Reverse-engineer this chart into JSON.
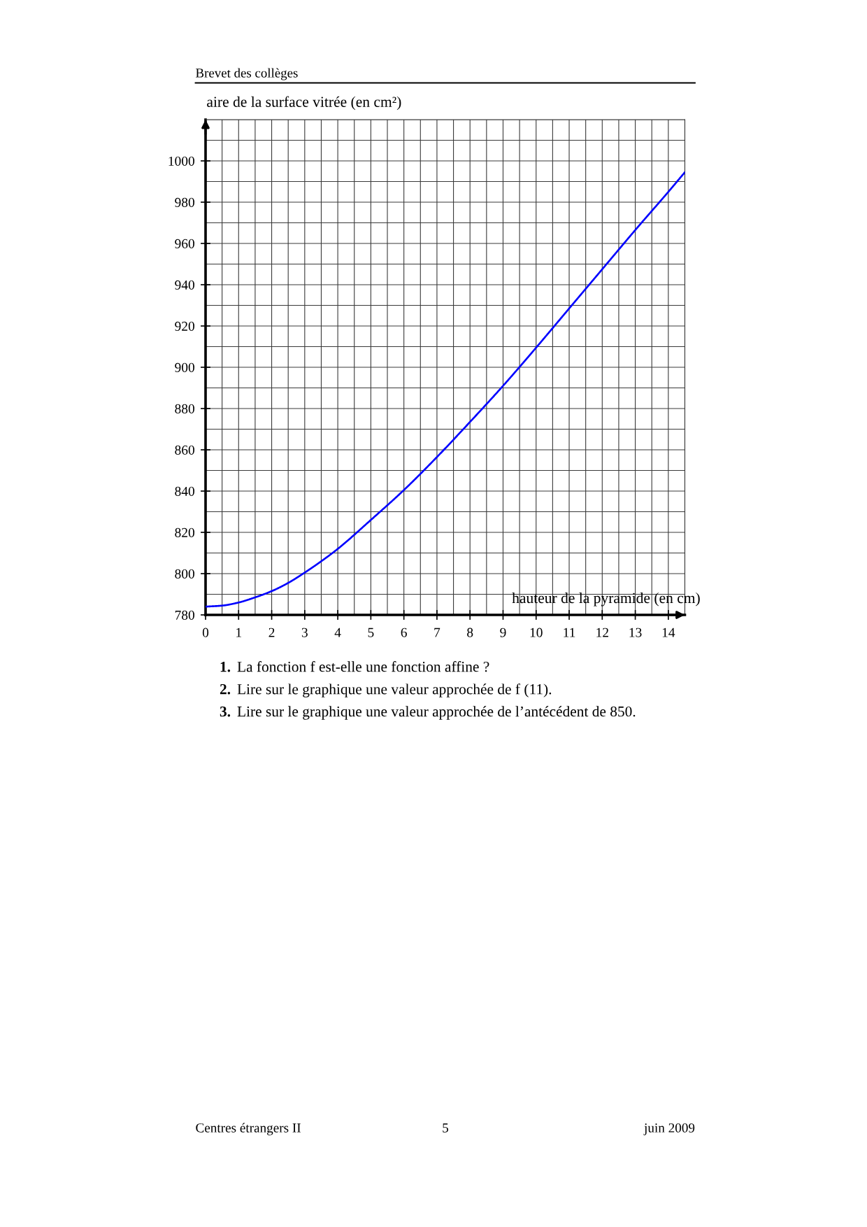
{
  "chart_data": {
    "type": "line",
    "xlabel": "hauteur de la pyramide (en cm)",
    "ylabel": "aire de la surface vitrée (en cm²)",
    "annotations": [
      "Brevet des collèges",
      "1. La fonction f est-elle une fonction affine ?",
      "2. Lire sur le graphique une valeur approchée de f (11).",
      "3. Lire sur le graphique une valeur approchée de l’antécédent de 850.",
      "Centres étrangers II",
      "5",
      "juin 2009"
    ],
    "x": [
      0,
      0.5,
      1,
      1.5,
      2,
      2.5,
      3,
      3.5,
      4,
      5,
      6,
      7,
      8,
      9,
      10,
      11,
      12,
      13,
      14,
      14.5
    ],
    "series": [
      {
        "color": "#0000ff",
        "values": [
          784,
          784.5,
          786,
          788.5,
          791.5,
          795.5,
          800.5,
          806,
          812,
          826,
          840.5,
          856.5,
          873.5,
          891,
          909.5,
          928.5,
          947.5,
          966.5,
          985,
          994.5
        ]
      }
    ],
    "xlim": [
      0,
      14.5
    ],
    "ylim": [
      780,
      1020
    ],
    "xticks": [
      0,
      {
        "value": 0.5,
        "label": null
      },
      1,
      {
        "value": 1.5,
        "label": null
      },
      2,
      {
        "value": 2.5,
        "label": null
      },
      3,
      {
        "value": 3.5,
        "label": null
      },
      4,
      {
        "value": 4.5,
        "label": null
      },
      5,
      {
        "value": 5.5,
        "label": null
      },
      6,
      {
        "value": 6.5,
        "label": null
      },
      7,
      {
        "value": 7.5,
        "label": null
      },
      8,
      {
        "value": 8.5,
        "label": null
      },
      9,
      {
        "value": 9.5,
        "label": null
      },
      10,
      {
        "value": 10.5,
        "label": null
      },
      11,
      {
        "value": 11.5,
        "label": null
      },
      12,
      {
        "value": 12.5,
        "label": null
      },
      13,
      {
        "value": 13.5,
        "label": null
      },
      14,
      {
        "value": 14.5,
        "label": null
      }
    ],
    "yticks": [
      780,
      {
        "value": 790,
        "label": null
      },
      800,
      {
        "value": 810,
        "label": null
      },
      820,
      {
        "value": 830,
        "label": null
      },
      840,
      {
        "value": 850,
        "label": null
      },
      860,
      {
        "value": 870,
        "label": null
      },
      880,
      {
        "value": 890,
        "label": null
      },
      900,
      {
        "value": 910,
        "label": null
      },
      920,
      {
        "value": 930,
        "label": null
      },
      940,
      {
        "value": 950,
        "label": null
      },
      960,
      {
        "value": 970,
        "label": null
      },
      980,
      {
        "value": 990,
        "label": null
      },
      1000,
      {
        "value": 1010,
        "label": null
      },
      {
        "value": 1020,
        "label": null
      }
    ],
    "grid": true
  }
}
